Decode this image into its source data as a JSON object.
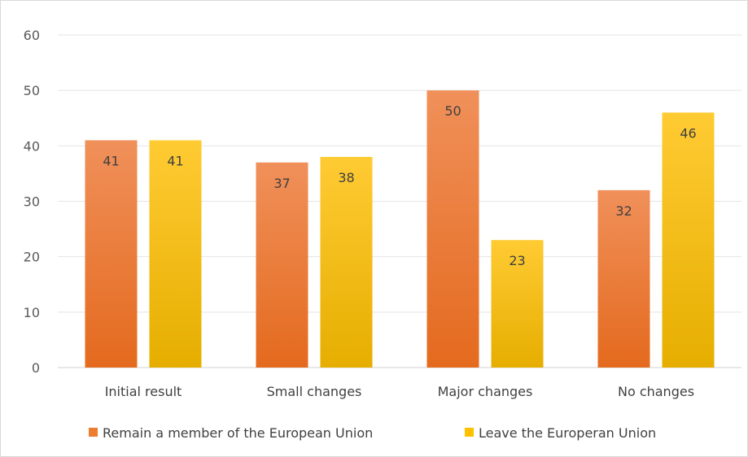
{
  "chart_data": {
    "type": "bar",
    "categories": [
      "Initial result",
      "Small changes",
      "Major changes",
      "No changes"
    ],
    "series": [
      {
        "name": "Remain a member of the European Union",
        "values": [
          41,
          37,
          50,
          32
        ],
        "color": "#ED7D31"
      },
      {
        "name": "Leave the Europeran Union",
        "values": [
          41,
          38,
          23,
          46
        ],
        "color": "#FFC000"
      }
    ],
    "ylim": [
      0,
      60
    ],
    "yticks": [
      0,
      10,
      20,
      30,
      40,
      50,
      60
    ],
    "grid": true,
    "legend": "bottom",
    "data_labels": true
  }
}
